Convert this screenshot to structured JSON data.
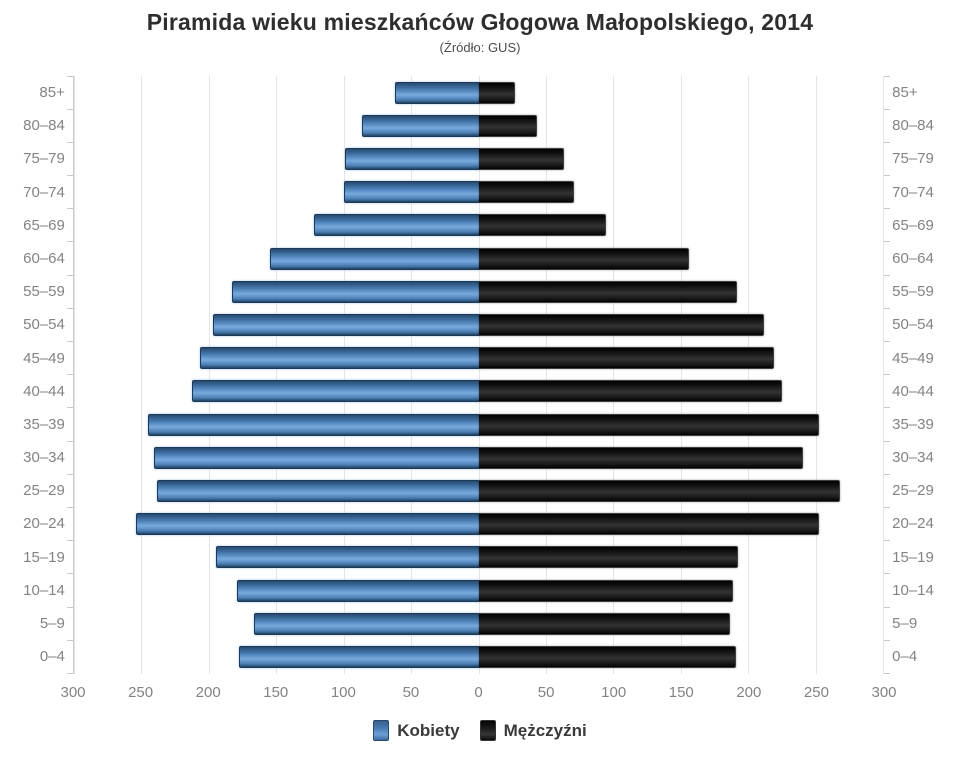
{
  "chart_data": {
    "type": "bar",
    "variant": "population-pyramid",
    "title": "Piramida wieku mieszkańców Głogowa Małopolskiego, 2014",
    "subtitle": "(Źródło: GUS)",
    "grid": true,
    "legend_position": "bottom",
    "categories_top_to_bottom": [
      "85+",
      "80–84",
      "75–79",
      "70–74",
      "65–69",
      "60–64",
      "55–59",
      "50–54",
      "45–49",
      "40–44",
      "35–39",
      "30–34",
      "25–29",
      "20–24",
      "15–19",
      "10–14",
      "5–9",
      "0–4"
    ],
    "series": [
      {
        "name": "Kobiety",
        "side": "left",
        "color": "#4a7db3",
        "values": [
          61,
          86,
          98,
          99,
          121,
          154,
          182,
          196,
          206,
          212,
          244,
          240,
          238,
          253,
          194,
          178,
          166,
          177
        ]
      },
      {
        "name": "Mężczyźni",
        "side": "right",
        "color": "#161616",
        "values": [
          26,
          43,
          63,
          70,
          94,
          155,
          191,
          211,
          218,
          224,
          252,
          240,
          267,
          252,
          192,
          188,
          186,
          190
        ]
      }
    ],
    "x_axis": {
      "ticks_left_to_right": [
        300,
        250,
        200,
        150,
        100,
        50,
        0,
        50,
        100,
        150,
        200,
        250,
        300
      ],
      "max_per_side": 300
    }
  }
}
